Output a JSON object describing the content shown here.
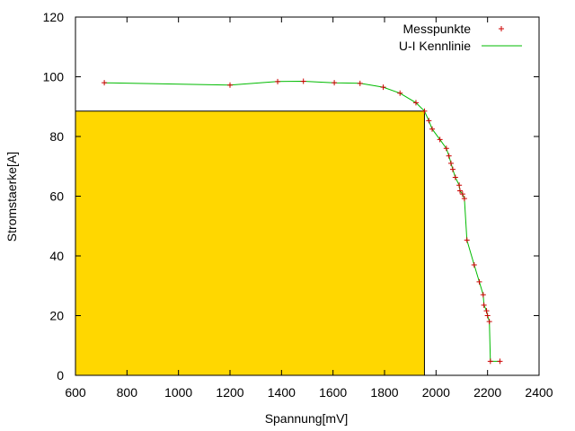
{
  "chart_data": {
    "type": "line",
    "title": "",
    "xlabel": "Spannung[mV]",
    "ylabel": "Stromstaerke[A]",
    "xlim": [
      600,
      2400
    ],
    "ylim": [
      0,
      120
    ],
    "xticks": [
      600,
      800,
      1000,
      1200,
      1400,
      1600,
      1800,
      2000,
      2200,
      2400
    ],
    "yticks": [
      0,
      20,
      40,
      60,
      80,
      100,
      120
    ],
    "grid": false,
    "legend_position": "top-right",
    "colors": {
      "points": "#cc0000",
      "line": "#00bb00",
      "rectangle_fill": "#ffd700",
      "rectangle_stroke": "#000000"
    },
    "highlight_rectangle": {
      "x0": 600,
      "x1": 1955,
      "y0": 0,
      "y1": 88.5
    },
    "series": [
      {
        "name": "Messpunkte",
        "kind": "points",
        "x": [
          712,
          1200,
          1385,
          1485,
          1605,
          1705,
          1795,
          1860,
          1922,
          1955,
          1972,
          1985,
          2015,
          2040,
          2050,
          2058,
          2065,
          2075,
          2090,
          2093,
          2103,
          2110,
          2120,
          2148,
          2168,
          2183,
          2186,
          2196,
          2200,
          2207,
          2211,
          2248
        ],
        "y": [
          98,
          97.2,
          98.4,
          98.5,
          98,
          97.8,
          96.5,
          94.5,
          91.3,
          88.5,
          85.3,
          82.5,
          79,
          76,
          73.5,
          71,
          69,
          66.3,
          63.7,
          61.8,
          60.7,
          59.2,
          45.3,
          37,
          31.3,
          27,
          23.5,
          21.6,
          20,
          18,
          4.7,
          4.7
        ]
      },
      {
        "name": "U-I Kennlinie",
        "kind": "line",
        "x": [
          712,
          1200,
          1385,
          1485,
          1605,
          1705,
          1795,
          1860,
          1922,
          1955,
          1972,
          1985,
          2015,
          2040,
          2050,
          2058,
          2065,
          2075,
          2090,
          2093,
          2103,
          2110,
          2120,
          2148,
          2168,
          2183,
          2186,
          2196,
          2200,
          2207,
          2211,
          2248
        ],
        "y": [
          98,
          97.2,
          98.4,
          98.5,
          98,
          97.8,
          96.5,
          94.5,
          91.3,
          88.5,
          85.3,
          82.5,
          79,
          76,
          73.5,
          71,
          69,
          66.3,
          63.7,
          61.8,
          60.7,
          59.2,
          45.3,
          37,
          31.3,
          27,
          23.5,
          21.6,
          20,
          18,
          4.7,
          4.7
        ]
      }
    ]
  }
}
